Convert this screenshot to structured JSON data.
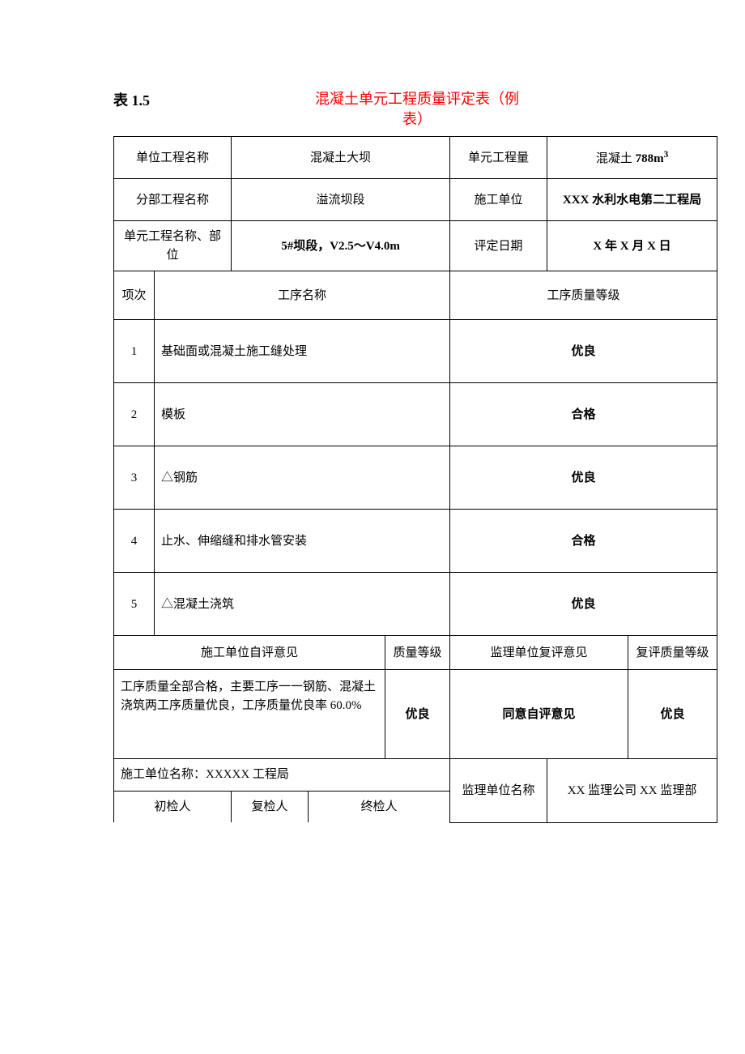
{
  "title": {
    "table_no": "表 1.5",
    "name_line1": "混凝土单元工程质量评定表（例",
    "name_line2": "表）"
  },
  "header": {
    "unit_project_label": "单位工程名称",
    "unit_project_value": "混凝土大坝",
    "unit_qty_label": "单元工程量",
    "unit_qty_value_prefix": "混凝土 ",
    "unit_qty_value_number": "788m",
    "unit_qty_value_sup": "3",
    "sub_project_label": "分部工程名称",
    "sub_project_value": "溢流坝段",
    "construction_unit_label": "施工单位",
    "construction_unit_value": "XXX 水利水电第二工程局",
    "unit_name_part_label": "单元工程名称、部位",
    "unit_name_part_value": "5#坝段，V2.5～V4.0m",
    "eval_date_label": "评定日期",
    "eval_date_value": "X 年 X 月 X 日"
  },
  "columns": {
    "seq": "项次",
    "process_name": "工序名称",
    "process_quality": "工序质量等级"
  },
  "rows": [
    {
      "seq": "1",
      "name": "基础面或混凝土施工缝处理",
      "grade": "优良"
    },
    {
      "seq": "2",
      "name": "模板",
      "grade": "合格"
    },
    {
      "seq": "3",
      "name": "△钢筋",
      "grade": "优良"
    },
    {
      "seq": "4",
      "name": "止水、伸缩缝和排水管安装",
      "grade": "合格"
    },
    {
      "seq": "5",
      "name": "△混凝土浇筑",
      "grade": "优良"
    }
  ],
  "eval": {
    "self_opinion_label": "施工单位自评意见",
    "quality_grade_label": "质量等级",
    "super_opinion_label": "监理单位复评意见",
    "re_quality_grade_label": "复评质量等级",
    "self_opinion_text": "工序质量全部合格，主要工序一一钢筋、混凝土浇筑两工序质量优良，工序质量优良率 60.0%",
    "self_grade": "优良",
    "super_opinion_text": "同意自评意见",
    "super_grade": "优良"
  },
  "footer": {
    "construction_unit_name": "施工单位名称：XXXXX 工程局",
    "initial_inspector": "初检人",
    "re_inspector": "复检人",
    "final_inspector": "终检人",
    "supervisor_unit_label": "监理单位名称",
    "supervisor_unit_value": "XX 监理公司 XX 监理部"
  },
  "layout": {
    "col_widths": [
      "50px",
      "95px",
      "95px",
      "95px",
      "80px",
      "120px",
      "100px",
      "110px"
    ]
  }
}
